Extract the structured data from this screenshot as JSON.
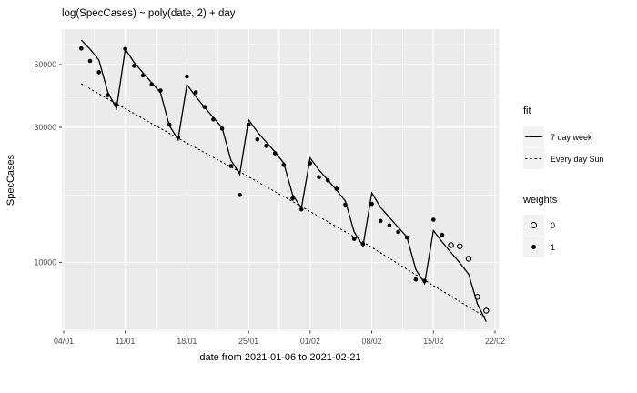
{
  "figure": {
    "title": "log(SpecCases) ~ poly(date, 2) + day"
  },
  "colors": {
    "outer_background": "#FFFFFF",
    "panel_background": "#EBEBEB",
    "gridline": "#FFFFFF",
    "tick_mark": "#333333",
    "tick_label": "#4D4D4D",
    "text": "#000000",
    "legend_key_background": "#F2F2F2",
    "series": "#000000"
  },
  "chart_data": {
    "type": "scatter",
    "title": "log(SpecCases) ~ poly(date, 2) + day",
    "xlabel": "date from 2021-01-06 to 2021-02-21",
    "ylabel": "SpecCases",
    "y_scale": "log10",
    "grid": "major-and-minor",
    "x_axis": {
      "tick_labels": [
        "04/01",
        "11/01",
        "18/01",
        "25/01",
        "01/02",
        "08/02",
        "15/02",
        "22/02"
      ],
      "tick_days": [
        0,
        7,
        14,
        21,
        28,
        35,
        42,
        49
      ],
      "minor_tick_days": [
        3.5,
        10.5,
        17.5,
        24.5,
        31.5,
        38.5,
        45.5
      ],
      "day_zero_date": "2021-01-04"
    },
    "y_axis": {
      "tick_labels": [
        "50000",
        "30000",
        "10000"
      ],
      "tick_values": [
        50000,
        30000,
        10000
      ],
      "minor_values": [
        59160,
        38730,
        17320,
        5773
      ],
      "range_approx": [
        5700,
        66700
      ]
    },
    "legend": {
      "fit": {
        "title": "fit",
        "entries": [
          {
            "label": "7 day week",
            "line": "solid"
          },
          {
            "label": "Every day Sun",
            "line": "dotted"
          }
        ]
      },
      "weights": {
        "title": "weights",
        "entries": [
          {
            "label": "0",
            "marker": "open"
          },
          {
            "label": "1",
            "marker": "filled"
          }
        ]
      }
    },
    "points_format": [
      "date",
      "value",
      "weight"
    ],
    "points": [
      [
        "2021-01-06",
        57000,
        1
      ],
      [
        "2021-01-07",
        51500,
        1
      ],
      [
        "2021-01-08",
        47000,
        1
      ],
      [
        "2021-01-09",
        39000,
        1
      ],
      [
        "2021-01-10",
        36100,
        1
      ],
      [
        "2021-01-11",
        56800,
        1
      ],
      [
        "2021-01-12",
        49500,
        1
      ],
      [
        "2021-01-13",
        45800,
        1
      ],
      [
        "2021-01-14",
        42600,
        1
      ],
      [
        "2021-01-15",
        40500,
        1
      ],
      [
        "2021-01-16",
        30700,
        1
      ],
      [
        "2021-01-17",
        27600,
        1
      ],
      [
        "2021-01-18",
        45400,
        1
      ],
      [
        "2021-01-19",
        39900,
        1
      ],
      [
        "2021-01-20",
        35400,
        1
      ],
      [
        "2021-01-21",
        32000,
        1
      ],
      [
        "2021-01-22",
        29700,
        1
      ],
      [
        "2021-01-23",
        21900,
        1
      ],
      [
        "2021-01-24",
        17300,
        1
      ],
      [
        "2021-01-25",
        30700,
        1
      ],
      [
        "2021-01-26",
        27200,
        1
      ],
      [
        "2021-01-27",
        25800,
        1
      ],
      [
        "2021-01-28",
        24300,
        1
      ],
      [
        "2021-01-29",
        22100,
        1
      ],
      [
        "2021-01-30",
        16800,
        1
      ],
      [
        "2021-01-31",
        15400,
        1
      ],
      [
        "2021-02-01",
        22400,
        1
      ],
      [
        "2021-02-02",
        20000,
        1
      ],
      [
        "2021-02-03",
        19500,
        1
      ],
      [
        "2021-02-04",
        18200,
        1
      ],
      [
        "2021-02-05",
        16000,
        1
      ],
      [
        "2021-02-06",
        12100,
        1
      ],
      [
        "2021-02-07",
        11600,
        1
      ],
      [
        "2021-02-08",
        16100,
        1
      ],
      [
        "2021-02-09",
        14000,
        1
      ],
      [
        "2021-02-10",
        13500,
        1
      ],
      [
        "2021-02-11",
        12800,
        1
      ],
      [
        "2021-02-12",
        12250,
        1
      ],
      [
        "2021-02-13",
        8700,
        1
      ],
      [
        "2021-02-14",
        8600,
        1
      ],
      [
        "2021-02-15",
        14150,
        1
      ],
      [
        "2021-02-16",
        12500,
        1
      ],
      [
        "2021-02-17",
        11500,
        0
      ],
      [
        "2021-02-18",
        11400,
        0
      ],
      [
        "2021-02-19",
        10300,
        0
      ],
      [
        "2021-02-20",
        7550,
        0
      ],
      [
        "2021-02-21",
        6750,
        0
      ]
    ],
    "series": [
      {
        "name": "7 day week",
        "style": "solid",
        "aligned_to": "points",
        "values": [
          61000,
          56700,
          51900,
          40000,
          35000,
          56700,
          50900,
          46800,
          43150,
          39750,
          30450,
          27150,
          42500,
          38600,
          35300,
          32550,
          29900,
          22950,
          20500,
          31950,
          28900,
          26650,
          24550,
          22450,
          17350,
          15530,
          23400,
          21200,
          19550,
          18000,
          16470,
          12800,
          11420,
          17600,
          15640,
          14420,
          13290,
          12300,
          9440,
          8420,
          12950,
          11800,
          10840,
          9960,
          9080,
          7130,
          6170
        ]
      },
      {
        "name": "Every day Sun",
        "style": "dotted",
        "dates": [
          "2021-01-06",
          "2021-01-10",
          "2021-01-17",
          "2021-01-24",
          "2021-01-31",
          "2021-02-07",
          "2021-02-14",
          "2021-02-21"
        ],
        "values": [
          42800,
          36350,
          27450,
          20900,
          15750,
          11800,
          8650,
          6380
        ]
      }
    ]
  }
}
